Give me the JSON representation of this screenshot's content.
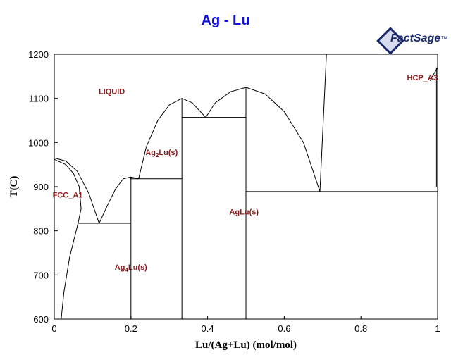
{
  "chart_data": {
    "type": "line",
    "title": "Ag - Lu",
    "xlabel": "Lu/(Ag+Lu) (mol/mol)",
    "ylabel": "T(C)",
    "xlim": [
      0,
      1
    ],
    "ylim": [
      600,
      1200
    ],
    "xticks": [
      "0",
      "0.2",
      "0.4",
      "0.6",
      "0.8",
      "1"
    ],
    "yticks": [
      "600",
      "700",
      "800",
      "900",
      "1000",
      "1100",
      "1200"
    ],
    "grid": false,
    "phase_labels": [
      {
        "text": "LIQUID",
        "x": 0.15,
        "y": 1110
      },
      {
        "text": "FCC_A1",
        "x": 0.035,
        "y": 875
      },
      {
        "text": "Ag",
        "sub": "2",
        "suffix": "Lu(s)",
        "x": 0.28,
        "y": 972
      },
      {
        "text": "Ag",
        "sub": "4",
        "suffix": "Lu(s)",
        "x": 0.2,
        "y": 712
      },
      {
        "text": "AgLu(s)",
        "x": 0.495,
        "y": 837
      },
      {
        "text": "HCP_A3",
        "x": 0.96,
        "y": 1141
      }
    ],
    "series": [
      {
        "values": [
          [
            0,
            965
          ],
          [
            0.03,
            958
          ],
          [
            0.06,
            935
          ],
          [
            0.09,
            885
          ],
          [
            0.117,
            817
          ]
        ]
      },
      {
        "values": [
          [
            0.117,
            817
          ],
          [
            0.14,
            860
          ],
          [
            0.16,
            895
          ],
          [
            0.18,
            918
          ],
          [
            0.2,
            922
          ],
          [
            0.22,
            918
          ]
        ]
      },
      {
        "values": [
          [
            0.22,
            918
          ],
          [
            0.24,
            990
          ],
          [
            0.27,
            1050
          ],
          [
            0.3,
            1085
          ],
          [
            0.333,
            1100
          ],
          [
            0.36,
            1090
          ],
          [
            0.395,
            1057
          ]
        ]
      },
      {
        "values": [
          [
            0.395,
            1057
          ],
          [
            0.42,
            1090
          ],
          [
            0.46,
            1115
          ],
          [
            0.5,
            1125
          ],
          [
            0.55,
            1110
          ],
          [
            0.6,
            1070
          ],
          [
            0.65,
            1000
          ],
          [
            0.693,
            889
          ]
        ]
      },
      {
        "values": [
          [
            0,
            962
          ],
          [
            0.03,
            950
          ],
          [
            0.05,
            930
          ],
          [
            0.065,
            900
          ],
          [
            0.07,
            850
          ],
          [
            0.062,
            817
          ]
        ]
      },
      {
        "values": [
          [
            0.062,
            817
          ],
          [
            0.04,
            740
          ],
          [
            0.025,
            660
          ],
          [
            0.018,
            600
          ]
        ]
      },
      {
        "values": [
          [
            0.062,
            817
          ],
          [
            0.2,
            817
          ]
        ]
      },
      {
        "values": [
          [
            0.2,
            600
          ],
          [
            0.2,
            922
          ]
        ]
      },
      {
        "values": [
          [
            0.198,
            918
          ],
          [
            0.333,
            918
          ]
        ]
      },
      {
        "values": [
          [
            0.333,
            600
          ],
          [
            0.333,
            1100
          ]
        ]
      },
      {
        "values": [
          [
            0.333,
            1057
          ],
          [
            0.5,
            1057
          ]
        ]
      },
      {
        "values": [
          [
            0.5,
            600
          ],
          [
            0.5,
            1125
          ]
        ]
      },
      {
        "values": [
          [
            0.5,
            889
          ],
          [
            1,
            889
          ]
        ]
      },
      {
        "values": [
          [
            0.693,
            889
          ],
          [
            0.71,
            1200
          ]
        ]
      },
      {
        "values": [
          [
            0.98,
            1140
          ],
          [
            1,
            1170
          ]
        ]
      },
      {
        "values": [
          [
            0.997,
            900
          ],
          [
            0.997,
            1170
          ]
        ]
      }
    ]
  }
}
